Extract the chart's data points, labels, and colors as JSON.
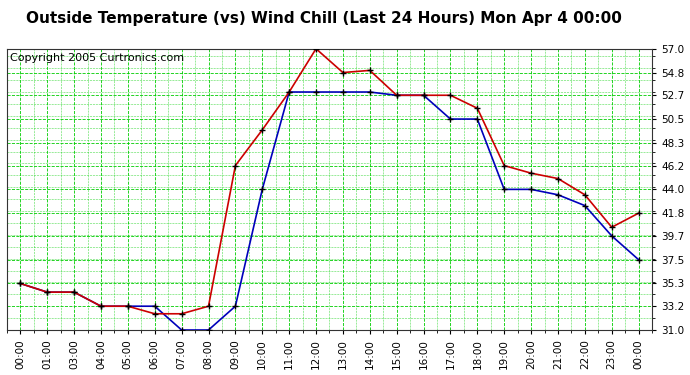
{
  "title": "Outside Temperature (vs) Wind Chill (Last 24 Hours) Mon Apr 4 00:00",
  "copyright": "Copyright 2005 Curtronics.com",
  "x_labels": [
    "00:00",
    "01:00",
    "03:00",
    "04:00",
    "05:00",
    "06:00",
    "07:00",
    "08:00",
    "09:00",
    "10:00",
    "11:00",
    "12:00",
    "13:00",
    "14:00",
    "15:00",
    "16:00",
    "17:00",
    "18:00",
    "19:00",
    "20:00",
    "21:00",
    "22:00",
    "23:00",
    "00:00"
  ],
  "outside_temp": [
    35.3,
    34.5,
    34.5,
    33.2,
    33.2,
    33.2,
    31.0,
    31.0,
    33.2,
    44.0,
    53.0,
    53.0,
    53.0,
    53.0,
    52.7,
    52.7,
    50.5,
    50.5,
    44.0,
    44.0,
    43.5,
    42.5,
    39.7,
    37.5
  ],
  "wind_chill": [
    35.3,
    34.5,
    34.5,
    33.2,
    33.2,
    32.5,
    32.5,
    33.2,
    46.2,
    49.5,
    53.0,
    57.0,
    54.8,
    55.0,
    52.7,
    52.7,
    52.7,
    51.5,
    46.2,
    45.5,
    45.0,
    43.5,
    40.5,
    41.8
  ],
  "ylim": [
    31.0,
    57.0
  ],
  "y_ticks": [
    31.0,
    33.2,
    35.3,
    37.5,
    39.7,
    41.8,
    44.0,
    46.2,
    48.3,
    50.5,
    52.7,
    54.8,
    57.0
  ],
  "outside_temp_color": "#0000bb",
  "wind_chill_color": "#cc0000",
  "grid_major_color": "#00cc00",
  "grid_minor_color": "#00cc00",
  "bg_color": "#ffffff",
  "title_fontsize": 11,
  "copyright_fontsize": 8
}
